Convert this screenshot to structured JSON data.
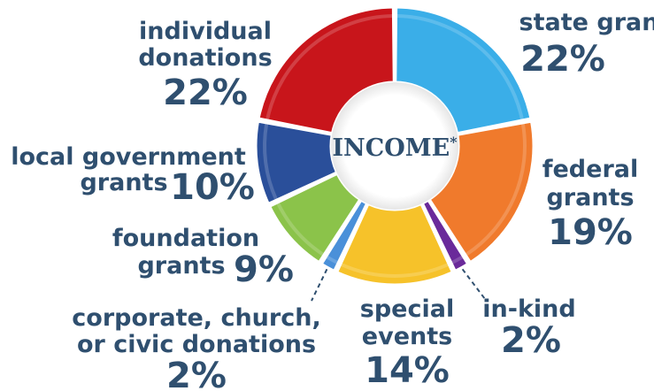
{
  "chart_data": {
    "type": "pie",
    "donut": true,
    "center_label": "INCOME*",
    "legend": "none",
    "slices": [
      {
        "label": "state grants",
        "value": 22,
        "value_label": "22%",
        "color": "#3aaee8"
      },
      {
        "label": "federal grants",
        "value": 19,
        "value_label": "19%",
        "color": "#f07a2c"
      },
      {
        "label": "in-kind",
        "value": 2,
        "value_label": "2%",
        "color": "#6a2a9a"
      },
      {
        "label": "special events",
        "value": 14,
        "value_label": "14%",
        "color": "#f6c22a"
      },
      {
        "label": "corporate, church, or civic donations",
        "value": 2,
        "value_label": "2%",
        "color": "#4a90d9"
      },
      {
        "label": "foundation grants",
        "value": 9,
        "value_label": "9%",
        "color": "#8bc34a"
      },
      {
        "label": "local government grants",
        "value": 10,
        "value_label": "10%",
        "color": "#2a4f9a"
      },
      {
        "label": "individual donations",
        "value": 22,
        "value_label": "22%",
        "color": "#c8151b"
      }
    ]
  }
}
